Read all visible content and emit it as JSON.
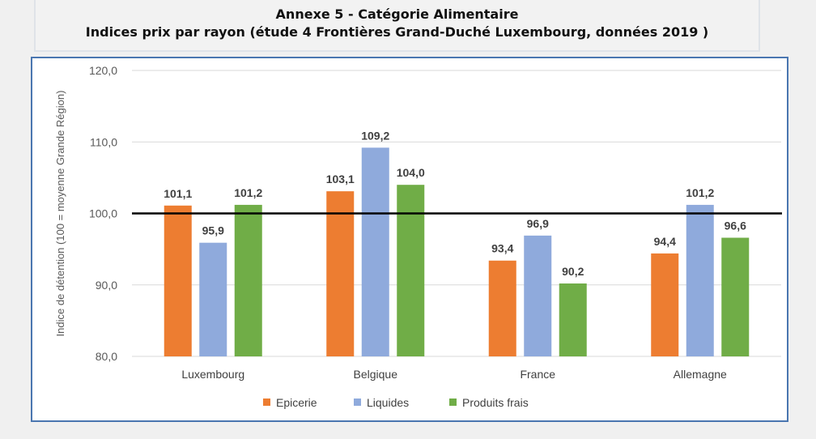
{
  "header": {
    "title_line1": "Annexe 5 - Catégorie Alimentaire",
    "title_line2": "Indices prix par rayon (étude 4 Frontières Grand-Duché Luxembourg, données 2019 )"
  },
  "chart_data": {
    "type": "bar",
    "title": "",
    "xlabel": "",
    "ylabel": "Indice de détention (100 = moyenne Grande Région)",
    "ylim": [
      80,
      120
    ],
    "yticks": [
      "80,0",
      "90,0",
      "100,0",
      "110,0",
      "120,0"
    ],
    "ytick_values": [
      80,
      90,
      100,
      110,
      120
    ],
    "grid": true,
    "reference_line": 100,
    "legend_position": "bottom",
    "categories": [
      "Luxembourg",
      "Belgique",
      "France",
      "Allemagne"
    ],
    "series": [
      {
        "name": "Epicerie",
        "color": "#ed7d31",
        "values": [
          101.1,
          103.1,
          93.4,
          94.4
        ],
        "labels": [
          "101,1",
          "103,1",
          "93,4",
          "94,4"
        ]
      },
      {
        "name": "Liquides",
        "color": "#8faadc",
        "values": [
          95.9,
          109.2,
          96.9,
          101.2
        ],
        "labels": [
          "95,9",
          "109,2",
          "96,9",
          "101,2"
        ]
      },
      {
        "name": "Produits frais",
        "color": "#70ad47",
        "values": [
          101.2,
          104.0,
          90.2,
          96.6
        ],
        "labels": [
          "101,2",
          "104,0",
          "90,2",
          "96,6"
        ]
      }
    ]
  }
}
